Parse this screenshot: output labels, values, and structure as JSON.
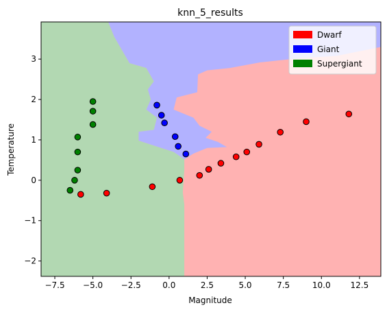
{
  "chart_data": {
    "type": "scatter",
    "title": "knn_5_results",
    "xlabel": "Magnitude",
    "ylabel": "Temperature",
    "xlim": [
      -8.4,
      13.9
    ],
    "ylim": [
      -2.38,
      3.92
    ],
    "xticks": [
      -7.5,
      -5.0,
      -2.5,
      0.0,
      2.5,
      5.0,
      7.5,
      10.0,
      12.5
    ],
    "xtick_labels": [
      "−7.5",
      "−5.0",
      "−2.5",
      "0.0",
      "2.5",
      "5.0",
      "7.5",
      "10.0",
      "12.5"
    ],
    "yticks": [
      -2,
      -1,
      0,
      1,
      2,
      3
    ],
    "ytick_labels": [
      "−2",
      "−1",
      "0",
      "1",
      "2",
      "3"
    ],
    "grid": false,
    "legend_position": "top-right",
    "background": "decision regions (green=Supergiant, blue=Giant, red=Dwarf)",
    "series": [
      {
        "name": "Dwarf",
        "color": "#ff0000",
        "points": [
          [
            -5.8,
            -0.35
          ],
          [
            -4.1,
            -0.32
          ],
          [
            -1.1,
            -0.16
          ],
          [
            0.7,
            0.0
          ],
          [
            2.0,
            0.12
          ],
          [
            2.6,
            0.27
          ],
          [
            3.4,
            0.42
          ],
          [
            4.4,
            0.58
          ],
          [
            5.1,
            0.7
          ],
          [
            5.9,
            0.89
          ],
          [
            7.3,
            1.19
          ],
          [
            9.0,
            1.45
          ],
          [
            11.8,
            1.64
          ]
        ]
      },
      {
        "name": "Giant",
        "color": "#0000ff",
        "points": [
          [
            -0.8,
            1.86
          ],
          [
            -0.5,
            1.61
          ],
          [
            -0.3,
            1.42
          ],
          [
            0.4,
            1.08
          ],
          [
            0.6,
            0.84
          ],
          [
            1.1,
            0.65
          ]
        ]
      },
      {
        "name": "Supergiant",
        "color": "#008000",
        "points": [
          [
            -5.0,
            1.95
          ],
          [
            -5.0,
            1.71
          ],
          [
            -5.0,
            1.38
          ],
          [
            -6.0,
            1.07
          ],
          [
            -6.0,
            0.7
          ],
          [
            -6.0,
            0.25
          ],
          [
            -6.2,
            0.0
          ],
          [
            -6.5,
            -0.25
          ]
        ]
      }
    ],
    "region_colors": {
      "Dwarf": "#ffb2b2",
      "Giant": "#b2b2ff",
      "Supergiant": "#b2d8b2"
    }
  }
}
